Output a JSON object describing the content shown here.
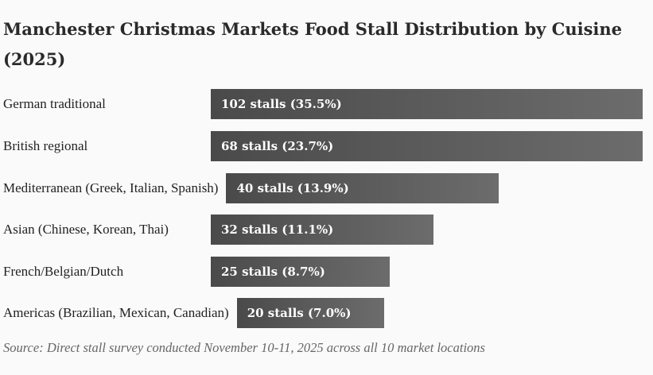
{
  "chart_data": {
    "type": "bar",
    "orientation": "horizontal",
    "title": "Manchester Christmas Markets Food Stall Distribution by Cuisine (2025)",
    "categories": [
      "German traditional",
      "British regional",
      "Mediterranean (Greek, Italian, Spanish)",
      "Asian (Chinese, Korean, Thai)",
      "French/Belgian/Dutch",
      "Americas (Brazilian, Mexican, Canadian)"
    ],
    "values": [
      102,
      68,
      40,
      32,
      25,
      20
    ],
    "data_labels": [
      "102 stalls (35.5%)",
      "68 stalls (23.7%)",
      "40 stalls (13.9%)",
      "32 stalls (11.1%)",
      "25 stalls (8.7%)",
      "20 stalls (7.0%)"
    ],
    "bar_color_start": "#4a4a4a",
    "bar_color_end": "#6c6c6c",
    "source": "Source: Direct stall survey conducted November 10-11, 2025 across all 10 market locations"
  }
}
